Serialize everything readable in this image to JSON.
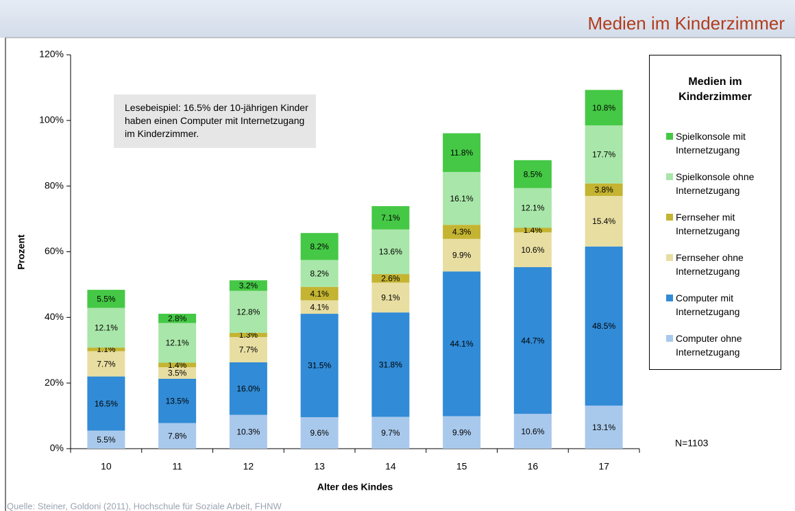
{
  "chart_data": {
    "type": "stacked_bar",
    "title": "Medien im Kinderzimmer",
    "legend_title": "Medien im Kinderzimmer",
    "x_label": "Alter des Kindes",
    "y_label": "Prozent",
    "annotation": "Lesebeispiel: 16.5% der 10-jährigen Kinder haben einen Computer mit Internetzugang im Kinderzimmer.",
    "note": "N=1103",
    "source": "Quelle: Steiner, Goldoni (2011), Hochschule für Soziale Arbeit, FHNW",
    "categories": [
      "10",
      "11",
      "12",
      "13",
      "14",
      "15",
      "16",
      "17"
    ],
    "ylim": [
      0,
      120
    ],
    "yticks": [
      {
        "value": 0,
        "label": "0%"
      },
      {
        "value": 20,
        "label": "20%"
      },
      {
        "value": 40,
        "label": "40%"
      },
      {
        "value": 60,
        "label": "60%"
      },
      {
        "value": 80,
        "label": "80%"
      },
      {
        "value": 100,
        "label": "100%"
      },
      {
        "value": 120,
        "label": "120%"
      }
    ],
    "legend": "right",
    "series": [
      {
        "name": "Computer ohne Internetzugang",
        "color": "#a9c9ec",
        "values": [
          5.5,
          7.8,
          10.3,
          9.6,
          9.7,
          9.9,
          10.6,
          13.1
        ],
        "value_labels": [
          "5.5%",
          "7.8%",
          "10.3%",
          "9.6%",
          "9.7%",
          "9.9%",
          "10.6%",
          "13.1%"
        ]
      },
      {
        "name": "Computer mit Internetzugang",
        "color": "#318bd6",
        "values": [
          16.5,
          13.5,
          16.0,
          31.5,
          31.8,
          44.1,
          44.7,
          48.5
        ],
        "value_labels": [
          "16.5%",
          "13.5%",
          "16.0%",
          "31.5%",
          "31.8%",
          "44.1%",
          "44.7%",
          "48.5%"
        ]
      },
      {
        "name": "Fernseher ohne Internetzugang",
        "color": "#e8dea2",
        "values": [
          7.7,
          3.5,
          7.7,
          4.1,
          9.1,
          9.9,
          10.6,
          15.4
        ],
        "value_labels": [
          "7.7%",
          "3.5%",
          "7.7%",
          "4.1%",
          "9.1%",
          "9.9%",
          "10.6%",
          "15.4%"
        ]
      },
      {
        "name": "Fernseher mit Internetzugang",
        "color": "#c4b432",
        "values": [
          1.1,
          1.4,
          1.3,
          4.1,
          2.6,
          4.3,
          1.4,
          3.8
        ],
        "value_labels": [
          "1.1%",
          "1.4%",
          "1.3%",
          "4.1%",
          "2.6%",
          "4.3%",
          "1.4%",
          "3.8%"
        ]
      },
      {
        "name": "Spielkonsole ohne Internetzugang",
        "color": "#a9e6a9",
        "values": [
          12.1,
          12.1,
          12.8,
          8.2,
          13.6,
          16.1,
          12.1,
          17.7
        ],
        "value_labels": [
          "12.1%",
          "12.1%",
          "12.8%",
          "8.2%",
          "13.6%",
          "16.1%",
          "12.1%",
          "17.7%"
        ]
      },
      {
        "name": "Spielkonsole mit Internetzugang",
        "color": "#45c845",
        "values": [
          5.5,
          2.8,
          3.2,
          8.2,
          7.1,
          11.8,
          8.5,
          10.8
        ],
        "value_labels": [
          "5.5%",
          "2.8%",
          "3.2%",
          "8.2%",
          "7.1%",
          "11.8%",
          "8.5%",
          "10.8%"
        ]
      }
    ]
  }
}
